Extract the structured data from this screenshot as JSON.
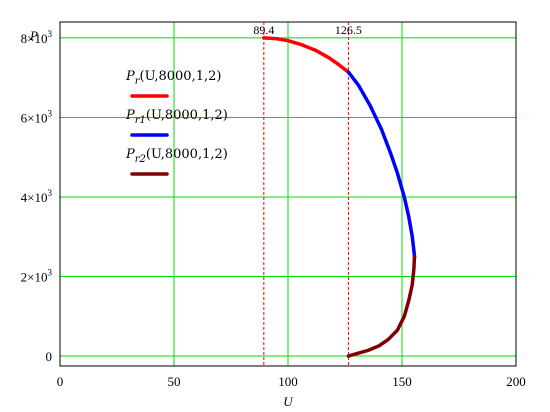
{
  "chart_data": {
    "type": "line",
    "xlabel": "U",
    "ylabel": "P",
    "xlim": [
      0,
      200
    ],
    "ylim": [
      -250,
      8400
    ],
    "x_ticks": [
      0,
      50,
      100,
      150,
      200
    ],
    "y_ticks": [
      {
        "value": 0,
        "mantissa": "0",
        "exponent": ""
      },
      {
        "value": 2000,
        "mantissa": "2×10",
        "exponent": "3"
      },
      {
        "value": 4000,
        "mantissa": "4×10",
        "exponent": "3"
      },
      {
        "value": 6000,
        "mantissa": "6×10",
        "exponent": "3"
      },
      {
        "value": 8000,
        "mantissa": "8×10",
        "exponent": "3"
      }
    ],
    "grid": true,
    "grid_color": "#00dd00",
    "legend_position": "upper-left",
    "markers": [
      {
        "x": 89.4,
        "label": "89.4",
        "color": "#ff0000"
      },
      {
        "x": 126.5,
        "label": "126.5",
        "color": "#ff0000"
      }
    ],
    "series": [
      {
        "name": "Pr(U,8000,1,2)",
        "legend": {
          "base": "P",
          "sub": "r",
          "args": "(U,8000,1,2)"
        },
        "color": "#ff0000",
        "x": [
          89.4,
          95,
          100,
          106,
          112,
          118,
          122,
          126.5
        ],
        "y": [
          8000,
          7980,
          7930,
          7830,
          7690,
          7500,
          7340,
          7140
        ]
      },
      {
        "name": "Pr1(U,8000,1,2)",
        "legend": {
          "base": "P",
          "sub": "r1",
          "args": "(U,8000,1,2)"
        },
        "color": "#0000ff",
        "x": [
          126.5,
          131,
          136,
          141,
          145,
          148,
          151,
          153,
          154.5,
          155.2,
          155.5
        ],
        "y": [
          7140,
          6800,
          6300,
          5700,
          5100,
          4600,
          4000,
          3500,
          3000,
          2650,
          2500
        ]
      },
      {
        "name": "Pr2(U,8000,1,2)",
        "legend": {
          "base": "P",
          "sub": "r2",
          "args": "(U,8000,1,2)"
        },
        "color": "#800000",
        "x": [
          155.5,
          155.2,
          154.5,
          153,
          151,
          148,
          144,
          140,
          135,
          130,
          126.5
        ],
        "y": [
          2500,
          2200,
          1800,
          1400,
          1000,
          650,
          420,
          260,
          140,
          60,
          0
        ]
      }
    ]
  }
}
